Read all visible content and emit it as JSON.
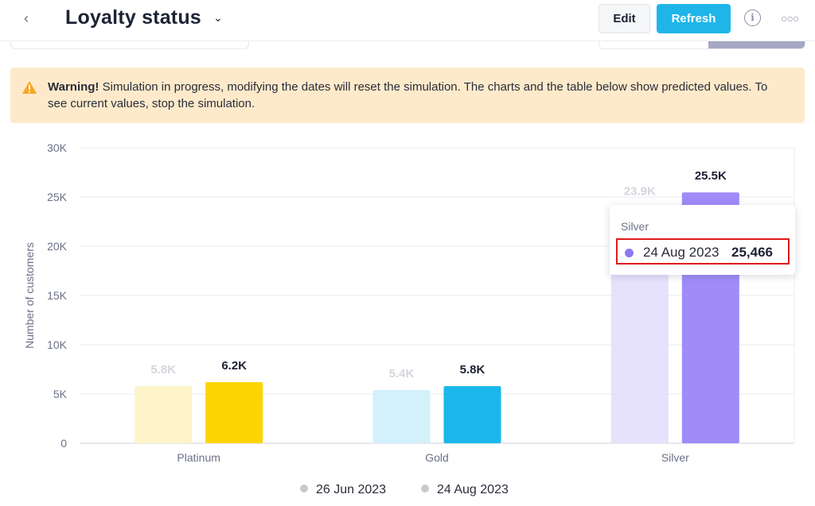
{
  "header": {
    "back_icon": "chevron-left-icon",
    "title": "Loyalty status",
    "title_menu_icon": "chevron-down-icon",
    "edit_label": "Edit",
    "refresh_label": "Refresh",
    "info_icon": "info-icon",
    "more_icon": "more-horizontal-icon"
  },
  "warning": {
    "icon": "warning-triangle-icon",
    "strong": "Warning!",
    "message": "Simulation in progress, modifying the dates will reset the simulation. The charts and the table below show predicted values. To see current values, stop the simulation."
  },
  "chart_data": {
    "type": "bar",
    "categories": [
      "Platinum",
      "Gold",
      "Silver"
    ],
    "series": [
      {
        "name": "26 Jun 2023",
        "values": [
          5800,
          5400,
          23900
        ],
        "labels": [
          "5.8K",
          "5.4K",
          "23.9K"
        ],
        "colors": [
          "#fdf5c9",
          "#d3f0fb",
          "#e6e2fc"
        ]
      },
      {
        "name": "24 Aug 2023",
        "values": [
          6200,
          5800,
          25466
        ],
        "labels": [
          "6.2K",
          "5.8K",
          "25.5K"
        ],
        "colors": [
          "#fdd403",
          "#1ab7ea",
          "#a08bf8"
        ]
      }
    ],
    "ylabel": "Number of customers",
    "ylim": [
      0,
      30000
    ],
    "yticks": [
      0,
      5000,
      10000,
      15000,
      20000,
      25000,
      30000
    ],
    "ytick_labels": [
      "0",
      "5K",
      "10K",
      "15K",
      "20K",
      "25K",
      "30K"
    ],
    "grid": true,
    "legend": "bottom"
  },
  "tooltip": {
    "category": "Silver",
    "date": "24 Aug 2023",
    "value": "25,466",
    "dot_color": "#8b79f2"
  },
  "legend": {
    "items": [
      {
        "label": "26 Jun 2023",
        "color": "#c8c9cf"
      },
      {
        "label": "24 Aug 2023",
        "color": "#c8c9cf"
      }
    ]
  }
}
